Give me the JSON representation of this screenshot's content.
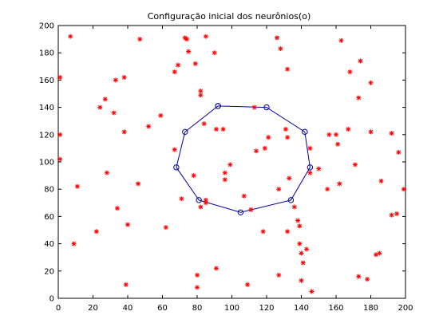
{
  "chart_data": {
    "type": "scatter",
    "title": "Configuração inicial dos neurônios(o)",
    "xlabel": "",
    "ylabel": "",
    "xlim": [
      0,
      200
    ],
    "ylim": [
      0,
      200
    ],
    "x_ticks": [
      "0",
      "20",
      "40",
      "60",
      "80",
      "100",
      "120",
      "140",
      "160",
      "180",
      "200"
    ],
    "y_ticks": [
      "0",
      "20",
      "40",
      "60",
      "80",
      "100",
      "120",
      "140",
      "160",
      "180",
      "200"
    ],
    "grid": false,
    "series": [
      {
        "marker": "asterisk",
        "color": "#ff0000",
        "points": [
          [
            7,
            192
          ],
          [
            1,
            162
          ],
          [
            1,
            120
          ],
          [
            1,
            102
          ],
          [
            9,
            40
          ],
          [
            11,
            82
          ],
          [
            22,
            49
          ],
          [
            24,
            140
          ],
          [
            27,
            146
          ],
          [
            28,
            92
          ],
          [
            32,
            136
          ],
          [
            33,
            160
          ],
          [
            34,
            66
          ],
          [
            38,
            122
          ],
          [
            38,
            162
          ],
          [
            39,
            10
          ],
          [
            40,
            54
          ],
          [
            46,
            84
          ],
          [
            47,
            190
          ],
          [
            52,
            126
          ],
          [
            59,
            134
          ],
          [
            62,
            52
          ],
          [
            67,
            166
          ],
          [
            67,
            109
          ],
          [
            69,
            171
          ],
          [
            71,
            73
          ],
          [
            73,
            191
          ],
          [
            74,
            190
          ],
          [
            75,
            181
          ],
          [
            78,
            90
          ],
          [
            79,
            172
          ],
          [
            80,
            8
          ],
          [
            80,
            17
          ],
          [
            82,
            149
          ],
          [
            82,
            152
          ],
          [
            82,
            67
          ],
          [
            84,
            128
          ],
          [
            85,
            70
          ],
          [
            85,
            192
          ],
          [
            85,
            72
          ],
          [
            90,
            180
          ],
          [
            91,
            22
          ],
          [
            91,
            124
          ],
          [
            95,
            124
          ],
          [
            96,
            92
          ],
          [
            96,
            87
          ],
          [
            99,
            98
          ],
          [
            107,
            75
          ],
          [
            109,
            10
          ],
          [
            111,
            65
          ],
          [
            113,
            140
          ],
          [
            114,
            108
          ],
          [
            118,
            49
          ],
          [
            119,
            110
          ],
          [
            121,
            118
          ],
          [
            126,
            191
          ],
          [
            127,
            80
          ],
          [
            127,
            17
          ],
          [
            128,
            183
          ],
          [
            131,
            124
          ],
          [
            132,
            168
          ],
          [
            132,
            118
          ],
          [
            132,
            49
          ],
          [
            133,
            88
          ],
          [
            136,
            67
          ],
          [
            138,
            57
          ],
          [
            139,
            53
          ],
          [
            139,
            40
          ],
          [
            140,
            33
          ],
          [
            140,
            13
          ],
          [
            141,
            26
          ],
          [
            143,
            36
          ],
          [
            145,
            110
          ],
          [
            146,
            5
          ],
          [
            145,
            92
          ],
          [
            150,
            95
          ],
          [
            155,
            80
          ],
          [
            156,
            120
          ],
          [
            160,
            120
          ],
          [
            161,
            113
          ],
          [
            162,
            84
          ],
          [
            163,
            189
          ],
          [
            167,
            124
          ],
          [
            168,
            166
          ],
          [
            171,
            98
          ],
          [
            173,
            147
          ],
          [
            173,
            16
          ],
          [
            174,
            174
          ],
          [
            178,
            14
          ],
          [
            180,
            158
          ],
          [
            180,
            122
          ],
          [
            183,
            32
          ],
          [
            185,
            33
          ],
          [
            186,
            86
          ],
          [
            192,
            61
          ],
          [
            192,
            121
          ],
          [
            195,
            62
          ],
          [
            196,
            107
          ],
          [
            199,
            80
          ]
        ]
      },
      {
        "marker": "circle",
        "color": "#0000aa",
        "line": true,
        "points": [
          [
            92,
            141
          ],
          [
            120,
            140
          ],
          [
            142,
            122
          ],
          [
            145,
            96
          ],
          [
            134,
            72
          ],
          [
            105,
            63
          ],
          [
            81,
            72
          ],
          [
            68,
            96
          ],
          [
            73,
            122
          ],
          [
            92,
            141
          ]
        ]
      }
    ]
  }
}
